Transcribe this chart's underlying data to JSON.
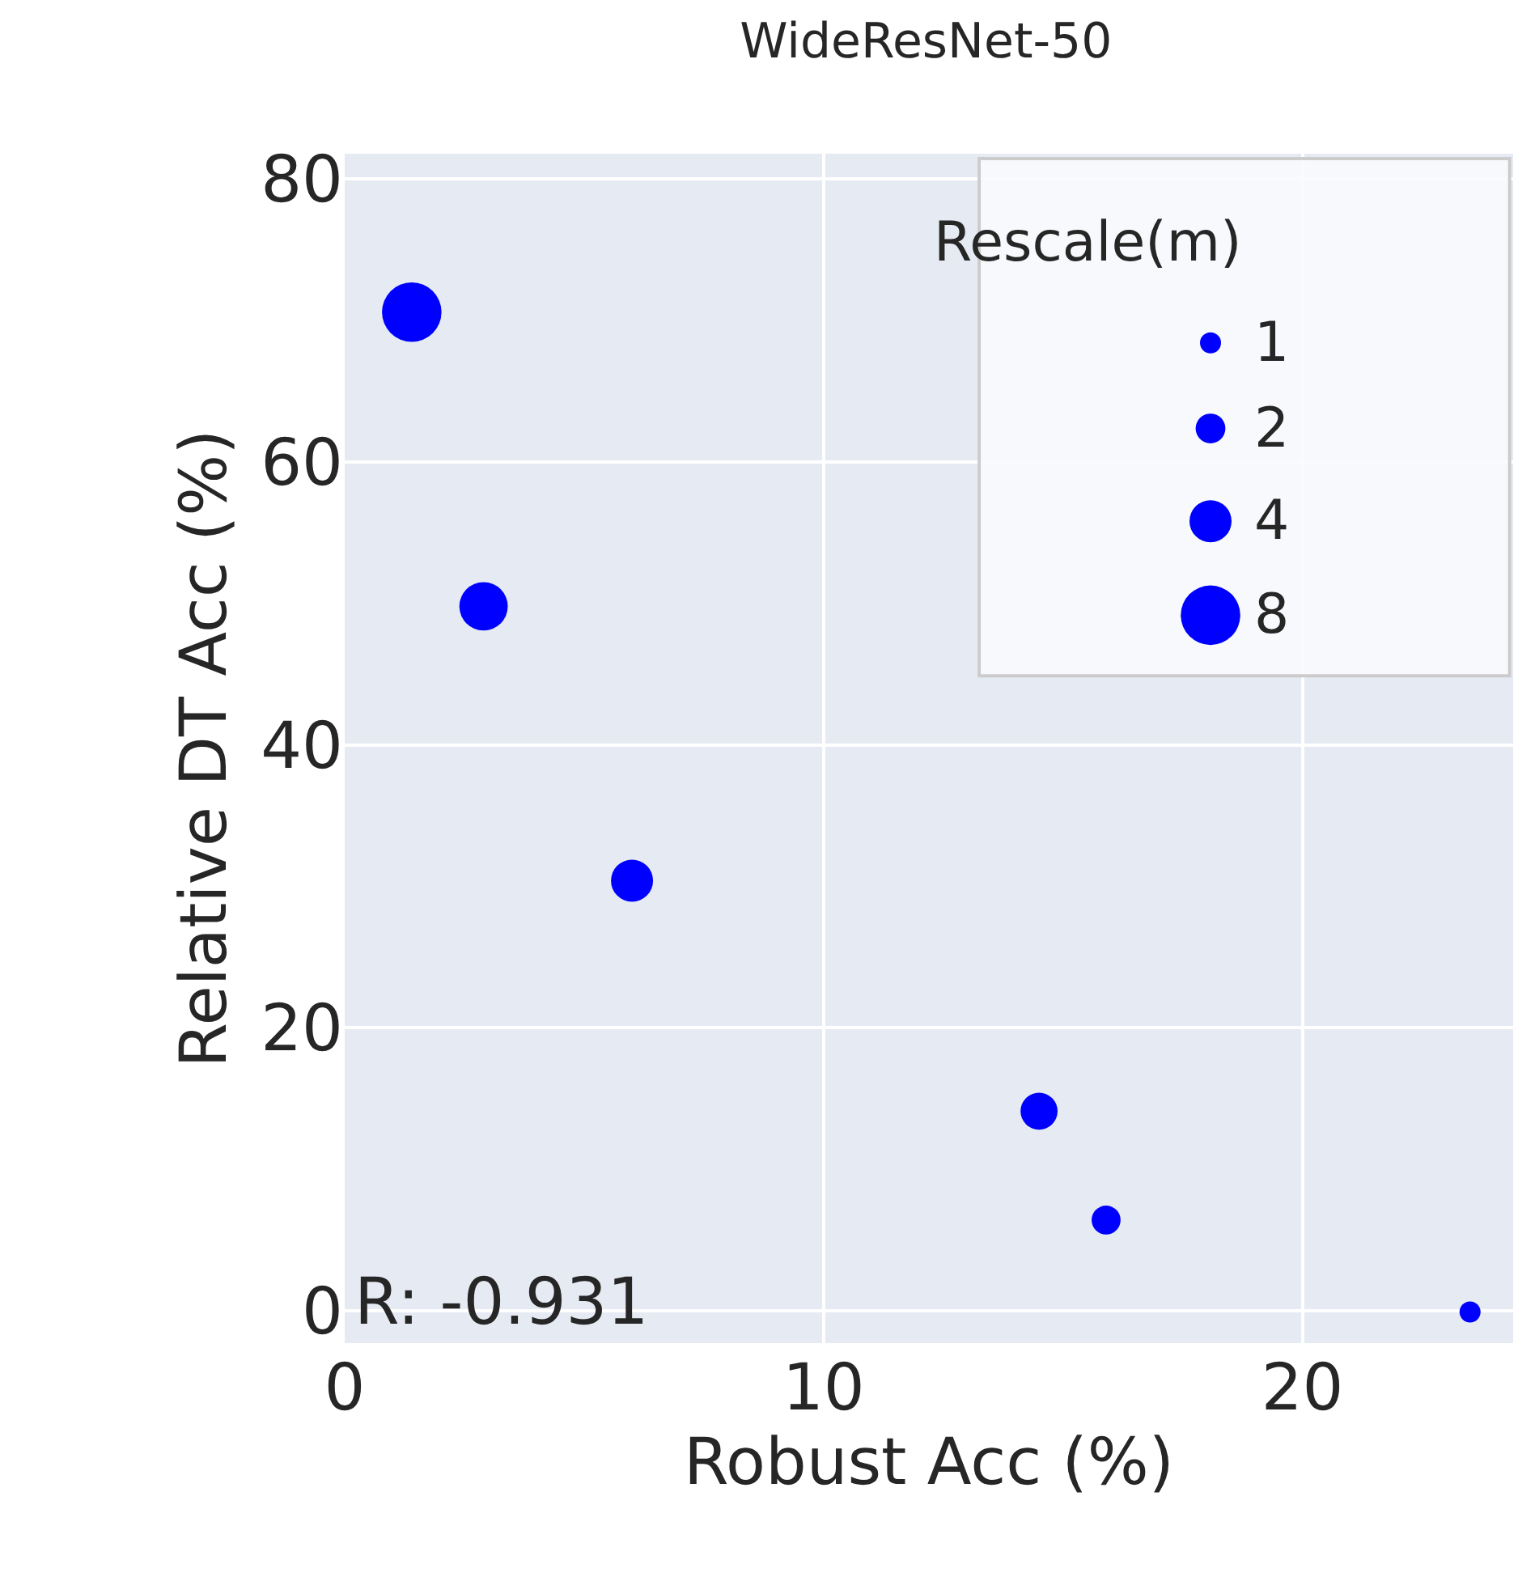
{
  "chart_data": {
    "type": "bubble",
    "title": "WideResNet-50",
    "xlabel": "Robust Acc (%)",
    "ylabel": "Relative DT Acc (%)",
    "legend_title": "Rescale(m)",
    "x": [
      1.4,
      2.9,
      6.0,
      14.5,
      15.9,
      23.5
    ],
    "series": [
      {
        "color": "#0000ff",
        "values": [
          70.6,
          49.8,
          30.4,
          14.1,
          6.4,
          -0.1
        ],
        "sizes": [
          8,
          5.3,
          4,
          3.1,
          1.9,
          1
        ]
      }
    ],
    "size_legend": [
      1,
      2,
      4,
      8
    ],
    "xlim": [
      0,
      24.4
    ],
    "xticks": [
      0,
      10,
      20
    ],
    "ylim": [
      -2.3,
      81.8
    ],
    "yticks": [
      0,
      20,
      40,
      60,
      80
    ],
    "grid": true,
    "marker": "circle",
    "annotations": [
      "R: -0.931"
    ]
  }
}
